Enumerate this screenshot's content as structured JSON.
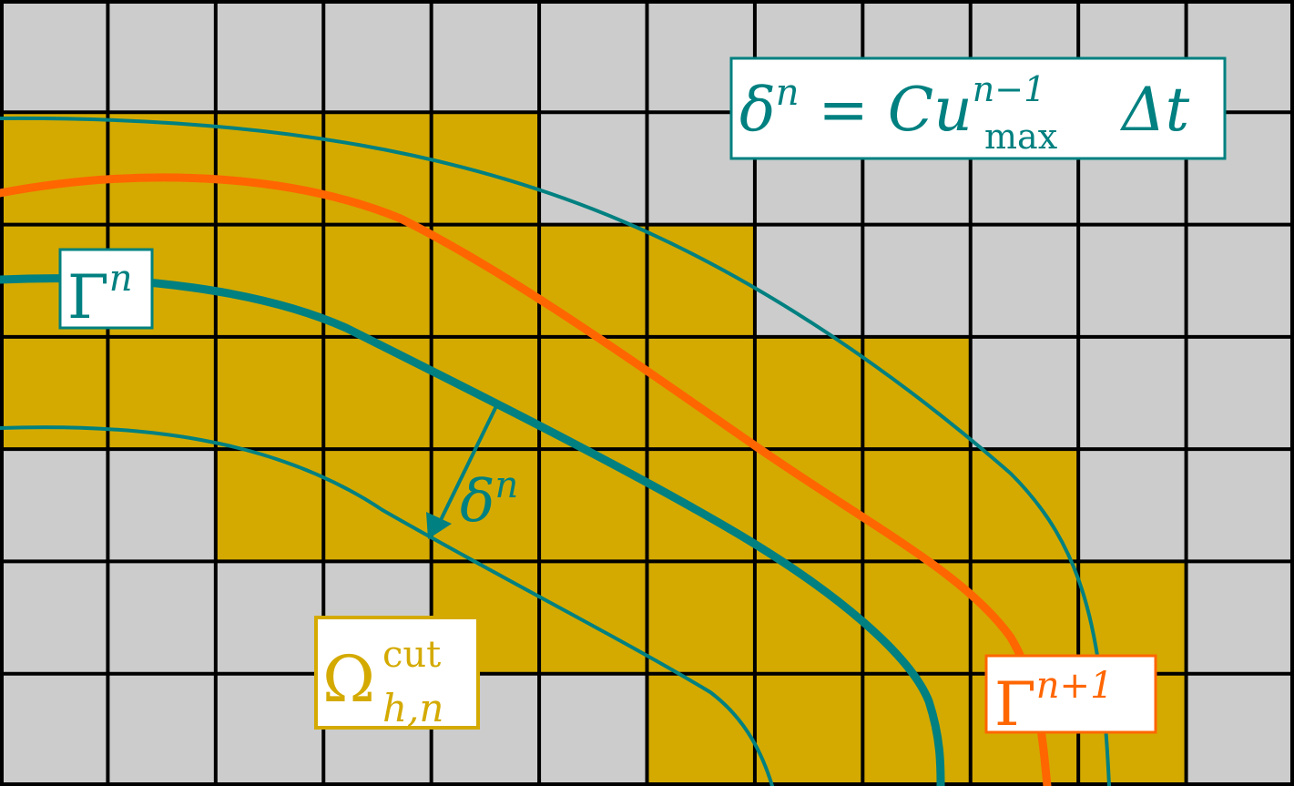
{
  "grid": {
    "cols": 12,
    "rows": 7
  },
  "colors": {
    "inactive_cell": "#cccccc",
    "active_cell": "#d4aa00",
    "grid_line": "#000000",
    "teal": "#008080",
    "orange": "#ff6600"
  },
  "active_cells": [
    [
      1,
      0
    ],
    [
      1,
      1
    ],
    [
      1,
      2
    ],
    [
      1,
      3
    ],
    [
      1,
      4
    ],
    [
      2,
      0
    ],
    [
      2,
      1
    ],
    [
      2,
      2
    ],
    [
      2,
      3
    ],
    [
      2,
      4
    ],
    [
      2,
      5
    ],
    [
      2,
      6
    ],
    [
      3,
      0
    ],
    [
      3,
      1
    ],
    [
      3,
      2
    ],
    [
      3,
      3
    ],
    [
      3,
      4
    ],
    [
      3,
      5
    ],
    [
      3,
      6
    ],
    [
      3,
      7
    ],
    [
      3,
      8
    ],
    [
      4,
      2
    ],
    [
      4,
      3
    ],
    [
      4,
      4
    ],
    [
      4,
      5
    ],
    [
      4,
      6
    ],
    [
      4,
      7
    ],
    [
      4,
      8
    ],
    [
      4,
      9
    ],
    [
      5,
      4
    ],
    [
      5,
      5
    ],
    [
      5,
      6
    ],
    [
      5,
      7
    ],
    [
      5,
      8
    ],
    [
      5,
      9
    ],
    [
      5,
      10
    ],
    [
      6,
      6
    ],
    [
      6,
      7
    ],
    [
      6,
      8
    ],
    [
      6,
      9
    ],
    [
      6,
      10
    ]
  ],
  "labels": {
    "formula": {
      "delta": "δ",
      "sup_n": "n",
      "eq": " = ",
      "C": "C",
      "u": "u",
      "sup": "n−1",
      "sub": "max",
      "tail": "Δt"
    },
    "gamma_n": {
      "base": "Γ",
      "sup": "n"
    },
    "gamma_n1": {
      "base": "Γ",
      "sup": "n+1"
    },
    "omega": {
      "base": "Ω",
      "sup": "cut",
      "sub": "h,n"
    },
    "delta_n": {
      "base": "δ",
      "sup": "n"
    }
  }
}
